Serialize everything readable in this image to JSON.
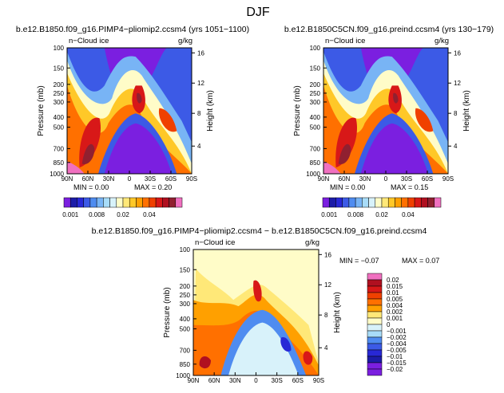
{
  "page": {
    "title": "DJF"
  },
  "panels": [
    {
      "id": "p1",
      "title": "b.e12.B1850.f09_g16.PIMP4−pliomip2.ccsm4 (yrs 1051−1100)",
      "field_label": "n−Cloud ice",
      "units": "g/kg",
      "min_text": "MIN =   0.00",
      "max_text": "MAX =   0.20"
    },
    {
      "id": "p2",
      "title": "b.e12.B1850C5CN.f09_g16.preind.ccsm4 (yrs 130−179)",
      "field_label": "n−Cloud ice",
      "units": "g/kg",
      "min_text": "MIN =   0.00",
      "max_text": "MAX =   0.15"
    },
    {
      "id": "p3",
      "title": "b.e12.B1850.f09_g16.PIMP4−pliomip2.ccsm4 − b.e12.B1850C5CN.f09_g16.preind.ccsm4",
      "field_label": "n−Cloud ice",
      "units": "g/kg",
      "min_text": "MIN =   −0.07",
      "max_text": "MAX =   0.07"
    }
  ],
  "chart_data": [
    {
      "type": "heatmap",
      "title": "b.e12.B1850.f09_g16.PIMP4−pliomip2.ccsm4 (yrs 1051−1100)",
      "xlabel": "",
      "ylabel": "Pressure (mb)",
      "y2label": "Height (km)",
      "x_ticks": [
        "90N",
        "60N",
        "30N",
        "0",
        "30S",
        "60S",
        "90S"
      ],
      "y_ticks": [
        "100",
        "150",
        "200",
        "250",
        "300",
        "400",
        "500",
        "700",
        "850",
        "1000"
      ],
      "y2_ticks": [
        "16",
        "12",
        "8",
        "4"
      ],
      "colorbar_labels": [
        "0.001",
        "0.008",
        "0.02",
        "0.04"
      ],
      "colors": [
        "#7b1fe0",
        "#1c1ca8",
        "#2828d6",
        "#3c5ae6",
        "#4f8cf0",
        "#78b4f5",
        "#a8dcf8",
        "#d8f2fa",
        "#fffcc8",
        "#ffe878",
        "#ffc828",
        "#ffa000",
        "#ff7000",
        "#f04000",
        "#d81818",
        "#b01020",
        "#902030",
        "#f070c0"
      ],
      "value_range": [
        0.0,
        0.2
      ]
    },
    {
      "type": "heatmap",
      "title": "b.e12.B1850C5CN.f09_g16.preind.ccsm4 (yrs 130−179)",
      "xlabel": "",
      "ylabel": "Pressure (mb)",
      "y2label": "Height (km)",
      "x_ticks": [
        "90N",
        "60N",
        "30N",
        "0",
        "30S",
        "60S",
        "90S"
      ],
      "y_ticks": [
        "100",
        "150",
        "200",
        "250",
        "300",
        "400",
        "500",
        "700",
        "850",
        "1000"
      ],
      "y2_ticks": [
        "16",
        "12",
        "8",
        "4"
      ],
      "colorbar_labels": [
        "0.001",
        "0.008",
        "0.02",
        "0.04"
      ],
      "colors": [
        "#7b1fe0",
        "#1c1ca8",
        "#2828d6",
        "#3c5ae6",
        "#4f8cf0",
        "#78b4f5",
        "#a8dcf8",
        "#d8f2fa",
        "#fffcc8",
        "#ffe878",
        "#ffc828",
        "#ffa000",
        "#ff7000",
        "#f04000",
        "#d81818",
        "#b01020",
        "#902030",
        "#f070c0"
      ],
      "value_range": [
        0.0,
        0.15
      ]
    },
    {
      "type": "heatmap",
      "title": "b.e12.B1850.f09_g16.PIMP4−pliomip2.ccsm4 − b.e12.B1850C5CN.f09_g16.preind.ccsm4",
      "xlabel": "",
      "ylabel": "Pressure (mb)",
      "y2label": "Height (km)",
      "x_ticks": [
        "90N",
        "60N",
        "30N",
        "0",
        "30S",
        "60S",
        "90S"
      ],
      "y_ticks": [
        "100",
        "150",
        "200",
        "250",
        "300",
        "400",
        "500",
        "700",
        "850",
        "1000"
      ],
      "y2_ticks": [
        "16",
        "12",
        "8",
        "4"
      ],
      "colorbar_labels": [
        "0.02",
        "0.015",
        "0.01",
        "0.005",
        "0.004",
        "0.002",
        "0.001",
        "0",
        "−0.001",
        "−0.002",
        "−0.004",
        "−0.005",
        "−0.01",
        "−0.015",
        "−0.02"
      ],
      "colors": [
        "#f070c0",
        "#b01020",
        "#d81818",
        "#f04000",
        "#ff7000",
        "#ffa000",
        "#ffe878",
        "#fffcc8",
        "#d8f2fa",
        "#a8dcf8",
        "#4f8cf0",
        "#3c5ae6",
        "#2828d6",
        "#1c1ca8",
        "#7b1fe0",
        "#7b1fe0"
      ],
      "value_range": [
        -0.07,
        0.07
      ]
    }
  ]
}
